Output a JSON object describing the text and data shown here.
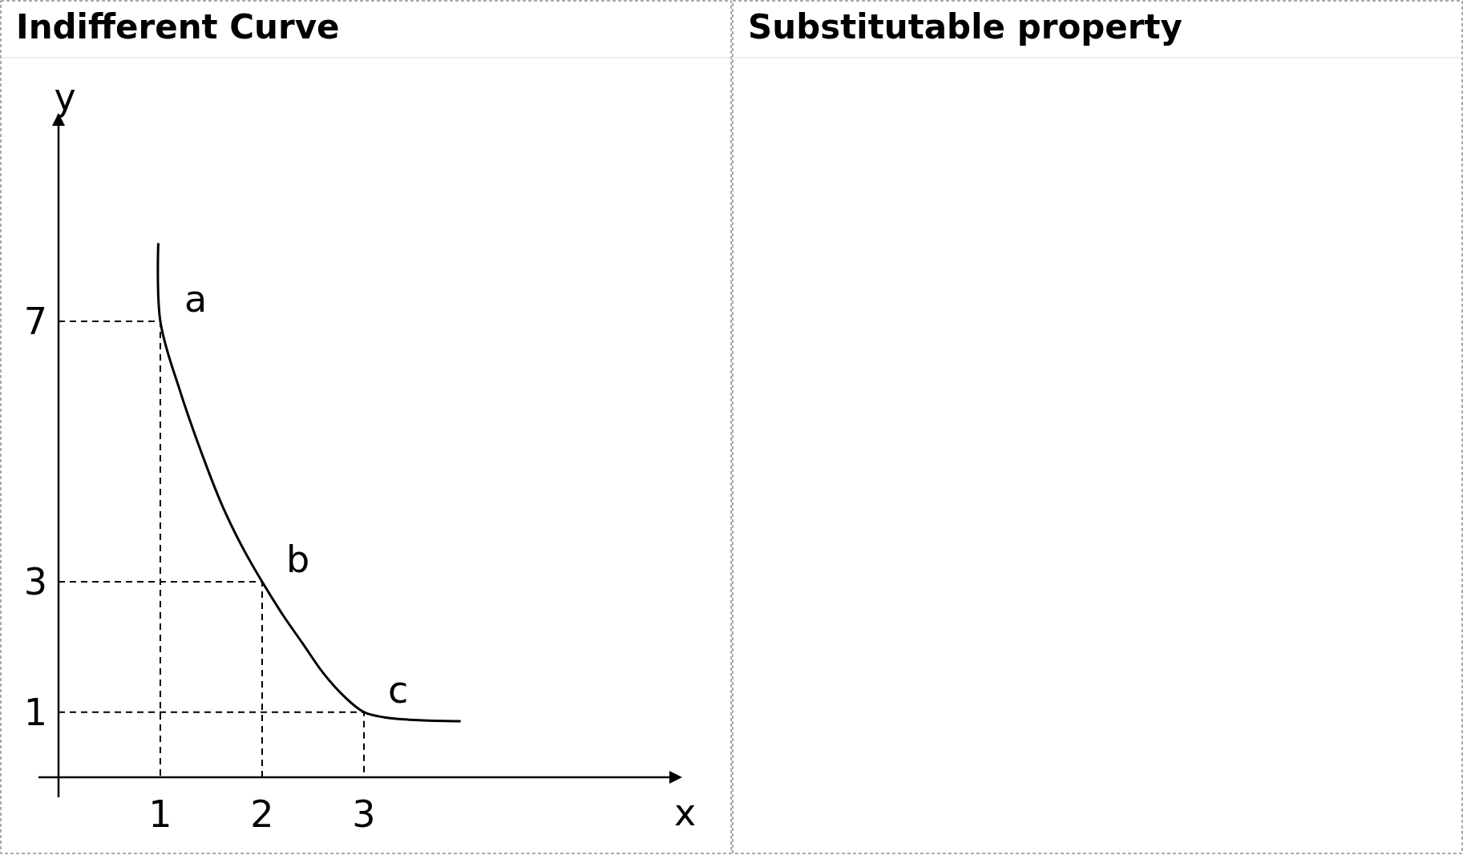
{
  "chart_data": [
    {
      "type": "line",
      "title": "Indifferent Curve",
      "xlabel": "x",
      "ylabel": "y",
      "xlim": [
        0,
        6
      ],
      "ylim": [
        0,
        10
      ],
      "xticks": [
        1,
        2,
        3
      ],
      "yticks": [
        1,
        3,
        7
      ],
      "series": [
        {
          "color": "#000000",
          "x": [
            0.98,
            1,
            1.2,
            1.4,
            1.6,
            1.8,
            2,
            2.2,
            2.4,
            2.6,
            2.8,
            3,
            3.2,
            3.5,
            3.95
          ],
          "values": [
            8.2,
            7,
            5.9,
            5,
            4.2,
            3.55,
            3,
            2.5,
            2.05,
            1.6,
            1.25,
            1,
            0.92,
            0.88,
            0.86
          ]
        },
        {
          "color": "#000000",
          "line_style": "dashed",
          "x": [
            0,
            1,
            1
          ],
          "values": [
            7,
            7,
            0
          ]
        },
        {
          "color": "#000000",
          "line_style": "dashed",
          "x": [
            0,
            2,
            2
          ],
          "values": [
            3,
            3,
            0
          ]
        },
        {
          "color": "#000000",
          "line_style": "dashed",
          "x": [
            0,
            3,
            3
          ],
          "values": [
            1,
            1,
            0
          ]
        }
      ],
      "annotations": [
        {
          "text": "a",
          "x": 1,
          "y": 7
        },
        {
          "text": "b",
          "x": 2,
          "y": 3
        },
        {
          "text": "c",
          "x": 3,
          "y": 1
        }
      ]
    },
    {
      "type": "other",
      "title": "Substitutable property"
    }
  ]
}
